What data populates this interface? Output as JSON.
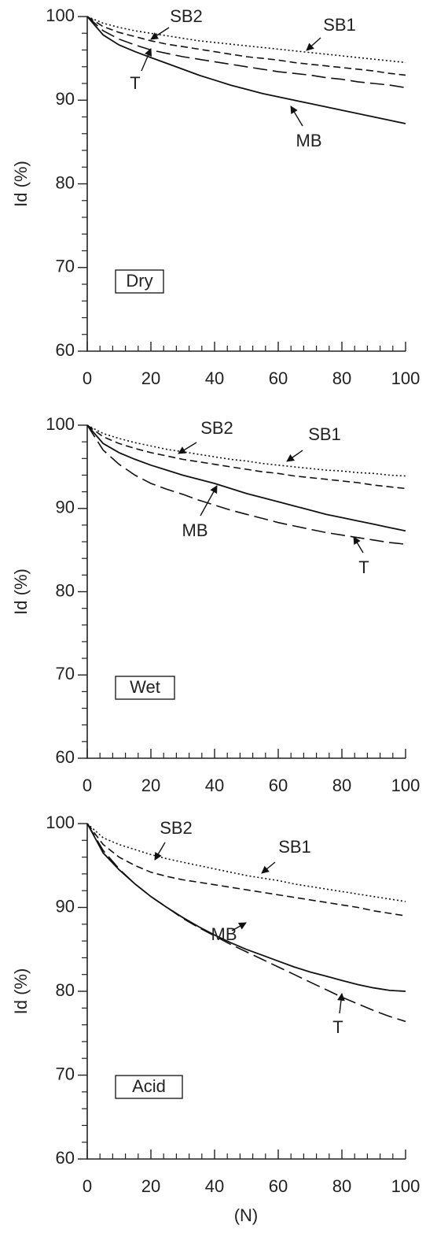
{
  "chart_data": [
    {
      "type": "line",
      "panel_label": "Dry",
      "ylabel": "Id (%)",
      "x": [
        0,
        5,
        10,
        15,
        20,
        25,
        30,
        35,
        40,
        45,
        50,
        55,
        60,
        65,
        70,
        75,
        80,
        85,
        90,
        95,
        100
      ],
      "xlim": [
        0,
        100
      ],
      "xticks": [
        0,
        20,
        40,
        60,
        80,
        100
      ],
      "ylim": [
        60,
        100
      ],
      "yticks": [
        60,
        70,
        80,
        90,
        100
      ],
      "series": [
        {
          "name": "SB1",
          "color": "#111111",
          "dash": "dotted",
          "values": [
            100,
            99.2,
            98.7,
            98.3,
            98,
            97.7,
            97.4,
            97.1,
            96.9,
            96.7,
            96.5,
            96.3,
            96.1,
            95.9,
            95.7,
            95.5,
            95.3,
            95.1,
            94.9,
            94.7,
            94.5
          ]
        },
        {
          "name": "SB2",
          "color": "#111111",
          "dash": "dashed",
          "values": [
            100,
            98.8,
            98.1,
            97.6,
            97.1,
            96.7,
            96.4,
            96.1,
            95.8,
            95.5,
            95.2,
            95,
            94.8,
            94.5,
            94.3,
            94.1,
            93.9,
            93.7,
            93.5,
            93.2,
            93
          ]
        },
        {
          "name": "T",
          "color": "#111111",
          "dash": "longdash",
          "values": [
            100,
            98.3,
            97.3,
            96.6,
            96,
            95.6,
            95.2,
            94.9,
            94.6,
            94.3,
            94,
            93.7,
            93.4,
            93.2,
            93,
            92.7,
            92.5,
            92.2,
            92,
            91.8,
            91.5
          ]
        },
        {
          "name": "MB",
          "color": "#111111",
          "dash": "solid",
          "values": [
            100,
            97.8,
            96.6,
            95.8,
            95.1,
            94.4,
            93.7,
            93,
            92.4,
            91.8,
            91.3,
            90.8,
            90.4,
            90,
            89.6,
            89.2,
            88.8,
            88.4,
            88,
            87.6,
            87.2
          ]
        }
      ]
    },
    {
      "type": "line",
      "panel_label": "Wet",
      "ylabel": "Id (%)",
      "x": [
        0,
        5,
        10,
        15,
        20,
        25,
        30,
        35,
        40,
        45,
        50,
        55,
        60,
        65,
        70,
        75,
        80,
        85,
        90,
        95,
        100
      ],
      "xlim": [
        0,
        100
      ],
      "xticks": [
        0,
        20,
        40,
        60,
        80,
        100
      ],
      "ylim": [
        60,
        100
      ],
      "yticks": [
        60,
        70,
        80,
        90,
        100
      ],
      "series": [
        {
          "name": "SB1",
          "color": "#111111",
          "dash": "dotted",
          "values": [
            100,
            99,
            98.4,
            97.9,
            97.5,
            97.1,
            96.8,
            96.5,
            96.2,
            95.9,
            95.7,
            95.4,
            95.2,
            95,
            94.8,
            94.6,
            94.5,
            94.3,
            94.2,
            94,
            93.9
          ]
        },
        {
          "name": "SB2",
          "color": "#111111",
          "dash": "dashed",
          "values": [
            100,
            98.6,
            97.8,
            97.2,
            96.7,
            96.3,
            95.9,
            95.6,
            95.3,
            95,
            94.7,
            94.4,
            94.2,
            93.9,
            93.7,
            93.5,
            93.3,
            93.1,
            92.8,
            92.6,
            92.4
          ]
        },
        {
          "name": "T",
          "color": "#111111",
          "dash": "longdash",
          "values": [
            100,
            97,
            95.3,
            94,
            93,
            92.3,
            91.7,
            91,
            90.4,
            89.8,
            89.3,
            88.8,
            88.3,
            87.9,
            87.5,
            87.1,
            86.8,
            86.5,
            86.2,
            85.9,
            85.7
          ]
        },
        {
          "name": "MB",
          "color": "#111111",
          "dash": "solid",
          "values": [
            100,
            97.8,
            96.7,
            95.9,
            95.2,
            94.6,
            94,
            93.5,
            93,
            92.4,
            91.8,
            91.3,
            90.8,
            90.3,
            89.8,
            89.3,
            88.9,
            88.5,
            88.1,
            87.7,
            87.3
          ]
        }
      ]
    },
    {
      "type": "line",
      "panel_label": "Acid",
      "ylabel": "Id (%)",
      "xlabel": "(N)",
      "x": [
        0,
        5,
        10,
        15,
        20,
        25,
        30,
        35,
        40,
        45,
        50,
        55,
        60,
        65,
        70,
        75,
        80,
        85,
        90,
        95,
        100
      ],
      "xlim": [
        0,
        100
      ],
      "xticks": [
        0,
        20,
        40,
        60,
        80,
        100
      ],
      "ylim": [
        60,
        100
      ],
      "yticks": [
        60,
        70,
        80,
        90,
        100
      ],
      "series": [
        {
          "name": "SB1",
          "color": "#111111",
          "dash": "dotted",
          "values": [
            100,
            98.3,
            97.5,
            96.9,
            96.3,
            95.8,
            95.4,
            95,
            94.6,
            94.2,
            93.8,
            93.5,
            93.2,
            92.8,
            92.5,
            92.2,
            91.9,
            91.6,
            91.3,
            91,
            90.7
          ]
        },
        {
          "name": "SB2",
          "color": "#111111",
          "dash": "dashed",
          "values": [
            100,
            97.5,
            96,
            95,
            94.2,
            93.7,
            93.3,
            93,
            92.7,
            92.4,
            92.1,
            91.8,
            91.5,
            91.2,
            90.9,
            90.6,
            90.3,
            90,
            89.6,
            89.3,
            89
          ]
        },
        {
          "name": "T",
          "color": "#111111",
          "dash": "longdash",
          "values": [
            100,
            96.8,
            94.6,
            92.8,
            91.3,
            90,
            88.7,
            87.6,
            86.6,
            85.6,
            84.7,
            83.8,
            82.9,
            82,
            81.1,
            80.2,
            79.3,
            78.5,
            77.7,
            77,
            76.4
          ]
        },
        {
          "name": "MB",
          "color": "#111111",
          "dash": "solid",
          "values": [
            100,
            96.5,
            94.5,
            92.8,
            91.3,
            90,
            88.8,
            87.7,
            86.7,
            85.8,
            85,
            84.3,
            83.6,
            82.9,
            82.3,
            81.8,
            81.3,
            80.8,
            80.4,
            80.1,
            80
          ]
        }
      ]
    }
  ]
}
